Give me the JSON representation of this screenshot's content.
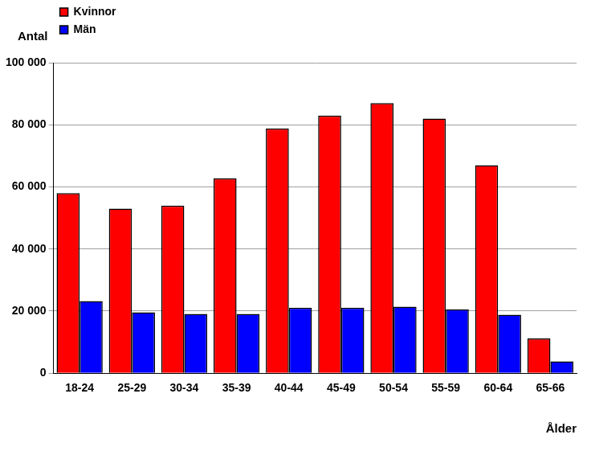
{
  "chart_data": {
    "type": "bar",
    "y_label": "Antal",
    "x_label": "Ålder",
    "categories": [
      "18-24",
      "25-29",
      "30-34",
      "35-39",
      "40-44",
      "45-49",
      "50-54",
      "55-59",
      "60-64",
      "65-66"
    ],
    "series": [
      {
        "name": "Kvinnor",
        "color": "#ff0000",
        "values": [
          58000,
          53000,
          54000,
          62800,
          78800,
          83000,
          87000,
          82000,
          67000,
          11200
        ]
      },
      {
        "name": "Män",
        "color": "#0000ff",
        "values": [
          23200,
          19600,
          19100,
          19100,
          21100,
          21100,
          21400,
          20600,
          18800,
          3800
        ]
      }
    ],
    "ylim": [
      0,
      100000
    ],
    "yticks": [
      0,
      {
        "value": 20000,
        "label": "20 000"
      },
      {
        "value": 40000,
        "label": "40 000"
      },
      {
        "value": 60000,
        "label": "60 000"
      },
      {
        "value": 80000,
        "label": "80 000"
      },
      {
        "value": 100000,
        "label": "100 000"
      }
    ],
    "grid": true,
    "legend": "top-left"
  }
}
